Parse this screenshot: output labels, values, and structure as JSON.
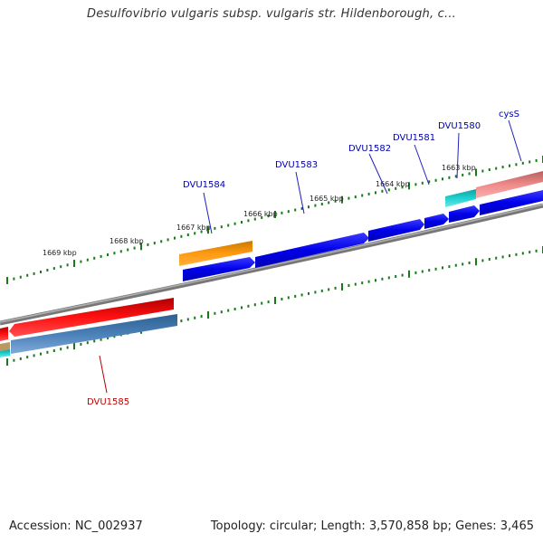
{
  "title": "Desulfovibrio vulgaris subsp. vulgaris str. Hildenborough, c...",
  "footer": {
    "accession": "Accession: NC_002937",
    "stats": "Topology: circular; Length: 3,570,858 bp; Genes: 3,465"
  },
  "colors": {
    "backbone": "#888888",
    "tick": "#1a7a1a",
    "forward_cds": "#0000e8",
    "forward_rna": "#ff8c00",
    "forward_other": "#20c8c8",
    "forward_pink": "#f08a8a",
    "reverse_cds": "#ee0000",
    "reverse_blue": "#4a80b8",
    "label_forward": "#0000b0",
    "label_reverse": "#c00000"
  },
  "tick_labels": [
    "1669 kbp",
    "1668 kbp",
    "1667 kbp",
    "1666 kbp",
    "1665 kbp",
    "1664 kbp",
    "1663 kbp"
  ],
  "gene_labels": {
    "g1584": "DVU1584",
    "g1583": "DVU1583",
    "g1582": "DVU1582",
    "g1581": "DVU1581",
    "g1580": "DVU1580",
    "cysS": "cysS",
    "g1585": "DVU1585"
  }
}
